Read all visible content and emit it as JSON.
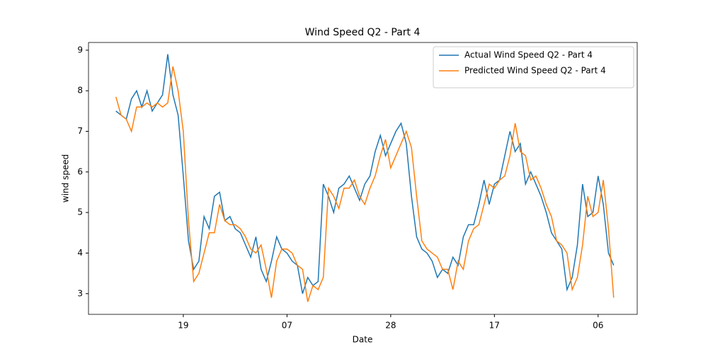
{
  "chart_data": {
    "type": "line",
    "title": "Wind Speed Q2 - Part 4",
    "x_label": "Date",
    "y_label": "wind speed",
    "categories": [
      null,
      null,
      null,
      null,
      null,
      null,
      null,
      null,
      null,
      null,
      null,
      null,
      null,
      "19",
      null,
      null,
      null,
      null,
      null,
      null,
      null,
      null,
      null,
      null,
      null,
      null,
      null,
      null,
      null,
      null,
      null,
      null,
      null,
      "07",
      null,
      null,
      null,
      null,
      null,
      null,
      null,
      null,
      null,
      null,
      null,
      null,
      null,
      null,
      null,
      null,
      null,
      null,
      null,
      "28",
      null,
      null,
      null,
      null,
      null,
      null,
      null,
      null,
      null,
      null,
      null,
      null,
      null,
      null,
      null,
      null,
      null,
      null,
      null,
      "17",
      null,
      null,
      null,
      null,
      null,
      null,
      null,
      null,
      null,
      null,
      null,
      null,
      null,
      null,
      null,
      null,
      null,
      null,
      null,
      "06",
      null,
      null,
      null
    ],
    "series": [
      {
        "name": "Actual Wind Speed Q2 - Part 4",
        "color": "#1f77b4",
        "values": [
          7.5,
          7.4,
          7.3,
          7.8,
          8.0,
          7.6,
          8.0,
          7.5,
          7.7,
          7.9,
          8.9,
          7.9,
          7.4,
          5.9,
          4.3,
          3.6,
          3.8,
          4.9,
          4.6,
          5.4,
          5.5,
          4.8,
          4.9,
          4.6,
          4.5,
          4.2,
          3.9,
          4.4,
          3.6,
          3.3,
          3.8,
          4.4,
          4.1,
          4.0,
          3.8,
          3.7,
          3.0,
          3.4,
          3.2,
          3.3,
          5.7,
          5.4,
          5.0,
          5.6,
          5.7,
          5.9,
          5.6,
          5.3,
          5.7,
          5.9,
          6.5,
          6.9,
          6.4,
          6.7,
          7.0,
          7.2,
          6.7,
          5.4,
          4.4,
          4.1,
          4.0,
          3.8,
          3.4,
          3.6,
          3.5,
          3.9,
          3.7,
          4.4,
          4.7,
          4.7,
          5.2,
          5.8,
          5.2,
          5.7,
          5.8,
          6.4,
          7.0,
          6.5,
          6.7,
          5.7,
          6.0,
          5.7,
          5.4,
          5.0,
          4.5,
          4.3,
          4.1,
          3.1,
          3.4,
          4.2,
          5.7,
          4.9,
          5.0,
          5.9,
          5.2,
          4.0,
          3.7
        ]
      },
      {
        "name": "Predicted Wind Speed Q2 - Part 4",
        "color": "#ff7f0e",
        "values": [
          7.85,
          7.4,
          7.3,
          7.0,
          7.6,
          7.6,
          7.7,
          7.6,
          7.7,
          7.6,
          7.7,
          8.6,
          8.0,
          7.0,
          4.8,
          3.3,
          3.5,
          4.0,
          4.5,
          4.5,
          5.2,
          4.8,
          4.7,
          4.7,
          4.6,
          4.4,
          4.1,
          4.0,
          4.2,
          3.6,
          2.9,
          3.8,
          4.1,
          4.1,
          4.0,
          3.7,
          3.6,
          2.8,
          3.2,
          3.1,
          3.4,
          5.6,
          5.4,
          5.1,
          5.6,
          5.6,
          5.8,
          5.4,
          5.2,
          5.6,
          5.9,
          6.4,
          6.8,
          6.1,
          6.4,
          6.7,
          7.0,
          6.6,
          5.4,
          4.3,
          4.1,
          4.0,
          3.9,
          3.6,
          3.6,
          3.1,
          3.8,
          3.6,
          4.3,
          4.6,
          4.7,
          5.2,
          5.7,
          5.6,
          5.8,
          5.9,
          6.4,
          7.2,
          6.5,
          6.4,
          5.8,
          5.9,
          5.6,
          5.2,
          4.9,
          4.3,
          4.2,
          4.0,
          3.1,
          3.4,
          4.2,
          5.4,
          4.9,
          5.0,
          5.8,
          4.6,
          2.9
        ]
      }
    ],
    "ylim": [
      2.49,
      9.19
    ],
    "yticks": [
      3,
      4,
      5,
      6,
      7,
      8,
      9
    ],
    "legend": "upper right",
    "grid": false
  }
}
